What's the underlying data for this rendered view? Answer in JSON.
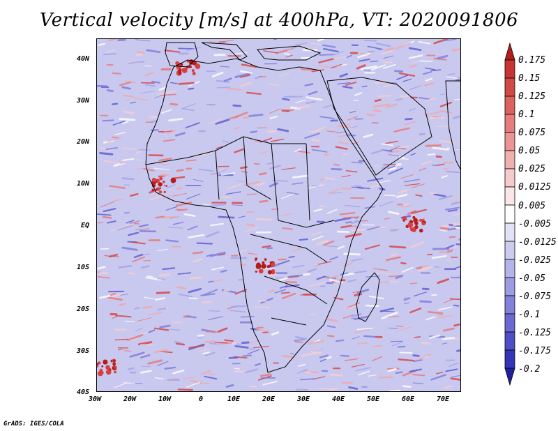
{
  "title": "Vertical velocity [m/s] at 400hPa, VT: 2020091806",
  "credit": "GrADS: IGES/COLA",
  "axes": {
    "lat_labels": [
      "40N",
      "30N",
      "20N",
      "10N",
      "EQ",
      "10S",
      "20S",
      "30S",
      "40S"
    ],
    "lon_labels": [
      "30W",
      "20W",
      "10W",
      "0",
      "10E",
      "20E",
      "30E",
      "40E",
      "50E",
      "60E",
      "70E"
    ]
  },
  "colorbar": {
    "labels": [
      "0.175",
      "0.15",
      "0.125",
      "0.1",
      "0.075",
      "0.05",
      "0.025",
      "0.0125",
      "0.005",
      "-0.005",
      "-0.0125",
      "-0.025",
      "-0.05",
      "-0.075",
      "-0.1",
      "-0.125",
      "-0.175",
      "-0.2"
    ],
    "colors": [
      "#b41c1c",
      "#c83434",
      "#d24848",
      "#dc6262",
      "#e67c7c",
      "#eb9696",
      "#f0b0b0",
      "#f5cccc",
      "#fae6e6",
      "#ffffff",
      "#e2e2f6",
      "#ccccf0",
      "#b4b4ea",
      "#9c9ce2",
      "#8282da",
      "#6a6ad2",
      "#4e4ec6",
      "#3434b8",
      "#2020a0"
    ]
  },
  "colors": {
    "base": "#c9c9f0",
    "red": "#e05050",
    "blue": "#5454d4",
    "coast": "#000000"
  }
}
